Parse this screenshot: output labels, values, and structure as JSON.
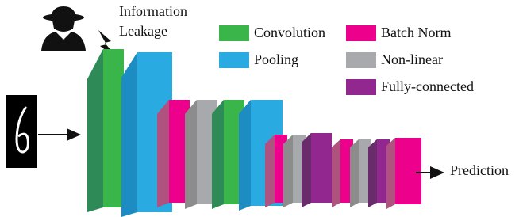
{
  "annotation": {
    "lines": [
      "Information",
      "Leakage"
    ]
  },
  "legend": [
    {
      "label": "Convolution",
      "color": "#39b54a"
    },
    {
      "label": "Batch Norm",
      "color": "#ec008c"
    },
    {
      "label": "Pooling",
      "color": "#29abe2"
    },
    {
      "label": "Non-linear",
      "color": "#a7a9ac"
    },
    {
      "label": "Fully-connected",
      "color": "#92278f"
    }
  ],
  "output_label": "Prediction"
}
